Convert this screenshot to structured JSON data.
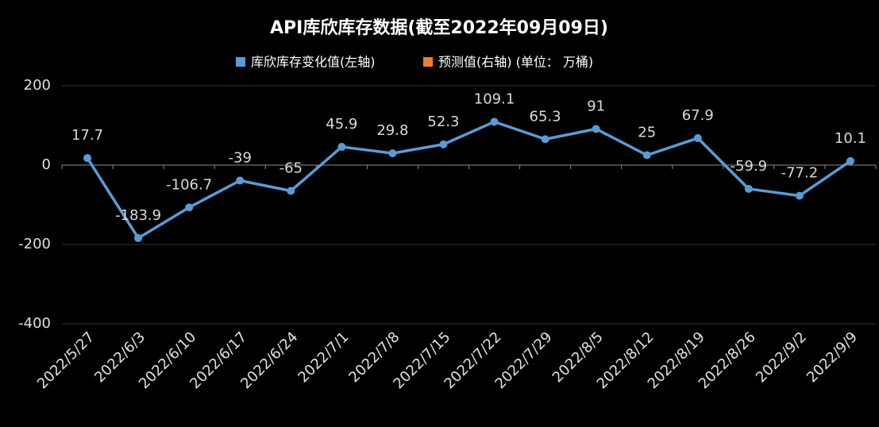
{
  "chart_data": {
    "type": "line",
    "title": "API库欣库存数据(截至2022年09月09日)",
    "categories": [
      "2022/5/27",
      "2022/6/3",
      "2022/6/10",
      "2022/6/17",
      "2022/6/24",
      "2022/7/1",
      "2022/7/8",
      "2022/7/15",
      "2022/7/22",
      "2022/7/29",
      "2022/8/5",
      "2022/8/12",
      "2022/8/19",
      "2022/8/26",
      "2022/9/2",
      "2022/9/9"
    ],
    "series": [
      {
        "name": "库欣库存变化值(左轴)",
        "color": "#5b9bd5",
        "values": [
          17.7,
          -183.9,
          -106.7,
          -39,
          -65,
          45.9,
          29.8,
          52.3,
          109.1,
          65.3,
          91,
          25,
          67.9,
          -59.9,
          -77.2,
          10.1
        ]
      },
      {
        "name": "预测值(右轴) (单位：  万桶)",
        "color": "#ed7d31",
        "values": [
          null,
          null,
          null,
          null,
          null,
          null,
          null,
          null,
          null,
          null,
          null,
          null,
          null,
          null,
          null,
          null
        ]
      }
    ],
    "ylim": [
      -400,
      200
    ],
    "yticks": [
      -400,
      -200,
      0,
      200
    ],
    "grid": true,
    "legend": "top"
  }
}
